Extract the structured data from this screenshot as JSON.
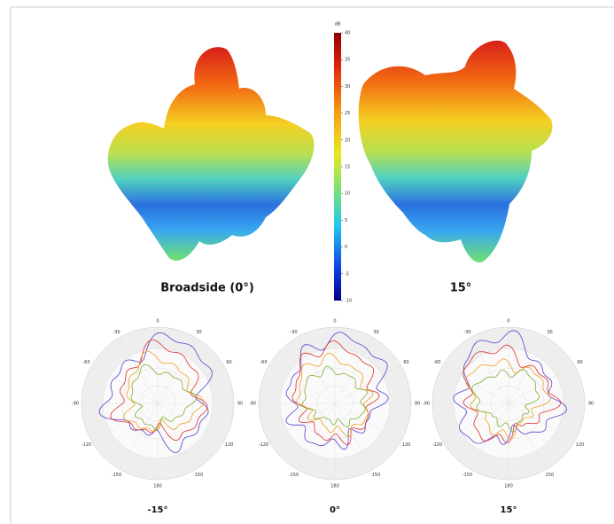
{
  "colorbar": {
    "unit": "dB",
    "lim": [
      -10,
      40
    ],
    "ticks": [
      40,
      35,
      30,
      25,
      20,
      15,
      10,
      5,
      0,
      -5,
      -10
    ]
  },
  "patterns_3d": [
    {
      "label": "Broadside (0°)"
    },
    {
      "label": "15°"
    }
  ],
  "polar": {
    "angle_labels": [
      "0",
      "30",
      "60",
      "90",
      "120",
      "150",
      "180",
      "-150",
      "-120",
      "-90",
      "-60",
      "-30"
    ],
    "plots": [
      {
        "label": "-15°"
      },
      {
        "label": "0°"
      },
      {
        "label": "15°"
      }
    ]
  }
}
